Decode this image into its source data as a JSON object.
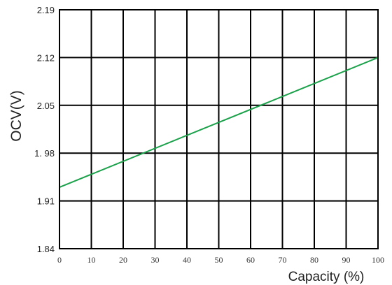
{
  "chart_data": {
    "type": "line",
    "title": "",
    "xlabel": "Capacity (%)",
    "ylabel": "OCV(V)",
    "xlim": [
      0,
      100
    ],
    "ylim": [
      1.84,
      2.19
    ],
    "x_ticks": [
      0,
      10,
      20,
      30,
      40,
      50,
      60,
      70,
      80,
      90,
      100
    ],
    "x_tick_labels": [
      "0",
      "10",
      "20",
      "30",
      "40",
      "50",
      "60",
      "70",
      "80",
      "90",
      "100"
    ],
    "y_ticks": [
      1.84,
      1.91,
      1.98,
      2.05,
      2.12,
      2.19
    ],
    "y_tick_labels": [
      "1.84",
      "1.91",
      "1. 98",
      "2.05",
      "2.12",
      "2.19"
    ],
    "grid": true,
    "series": [
      {
        "color": "#1aa14a",
        "x": [
          0,
          100
        ],
        "y": [
          1.93,
          2.12
        ]
      }
    ]
  }
}
